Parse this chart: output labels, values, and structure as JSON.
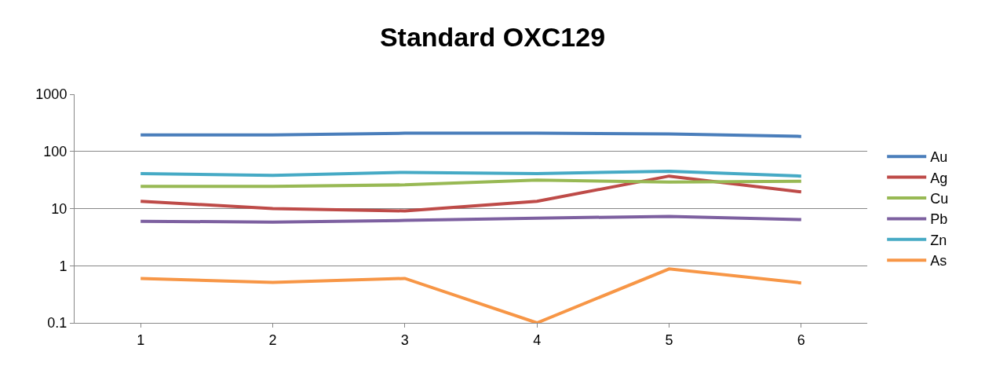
{
  "chart_data": {
    "type": "line",
    "title": "Standard OXC129",
    "categories": [
      "1",
      "2",
      "3",
      "4",
      "5",
      "6"
    ],
    "series": [
      {
        "name": "Au",
        "color": "#4a7ebb",
        "values": [
          195,
          195,
          208,
          208,
          202,
          183
        ]
      },
      {
        "name": "Ag",
        "color": "#be4b48",
        "values": [
          13.4,
          10,
          9.1,
          13.4,
          37,
          19.6
        ]
      },
      {
        "name": "Cu",
        "color": "#98b954",
        "values": [
          24.5,
          24.5,
          26,
          31.6,
          29,
          30
        ]
      },
      {
        "name": "Pb",
        "color": "#7d60a0",
        "values": [
          6.0,
          5.8,
          6.2,
          6.8,
          7.3,
          6.4
        ]
      },
      {
        "name": "Zn",
        "color": "#46aac5",
        "values": [
          41,
          38,
          43,
          41,
          45,
          37
        ]
      },
      {
        "name": "As",
        "color": "#f79646",
        "values": [
          0.6,
          0.51,
          0.6,
          0.1,
          0.88,
          0.5
        ]
      }
    ],
    "log": "y",
    "ylim": [
      0.1,
      1000
    ],
    "yticks": [
      0.1,
      1,
      10,
      100,
      1000
    ],
    "grid": "y",
    "legend": "right",
    "marker": "none",
    "line_style": "solid"
  }
}
